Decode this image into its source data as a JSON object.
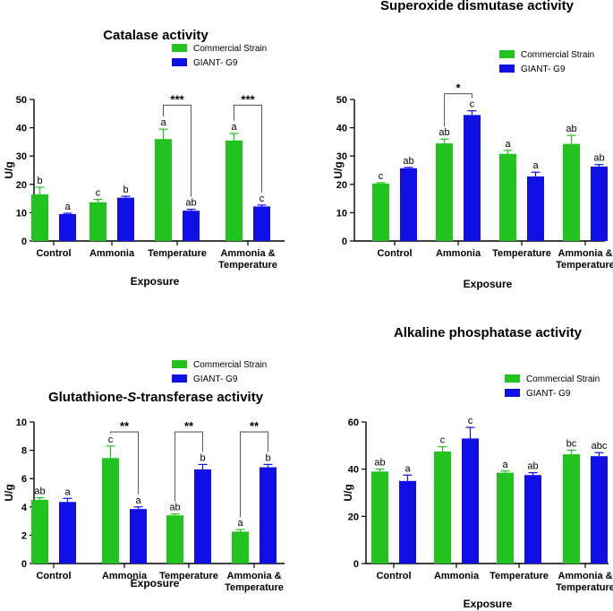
{
  "colors": {
    "commercial": "#22c21f",
    "giant": "#1010e6"
  },
  "chart_data": [
    {
      "type": "bar",
      "title": "Catalase activity",
      "xlabel": "Exposure",
      "ylabel": "U/g",
      "ylim": [
        0,
        50
      ],
      "yticks": [
        "0",
        "10",
        "20",
        "30",
        "40",
        "50"
      ],
      "categories": [
        "Control",
        "Ammonia",
        "Temperature",
        [
          "Ammonia &",
          "Temperature"
        ]
      ],
      "legend": [
        "Commercial Strain",
        "GIANT- G9"
      ],
      "series": [
        {
          "name": "Commercial Strain",
          "values": [
            16.5,
            13.7,
            36.0,
            35.5
          ],
          "errors": [
            2.5,
            1.0,
            3.5,
            2.5
          ],
          "letters": [
            "b",
            "c",
            "a",
            "a"
          ]
        },
        {
          "name": "GIANT- G9",
          "values": [
            9.5,
            15.3,
            10.7,
            12.2
          ],
          "errors": [
            0.3,
            0.5,
            0.5,
            0.5
          ],
          "letters": [
            "a",
            "b",
            "ab",
            "c"
          ]
        }
      ],
      "significance": [
        {
          "group": 2,
          "label": "***",
          "top": 48
        },
        {
          "group": 3,
          "label": "***",
          "top": 48
        }
      ]
    },
    {
      "type": "bar",
      "title": "Superoxide dismutase activity",
      "xlabel": "Exposure",
      "ylabel": "U/g",
      "ylim": [
        0,
        50
      ],
      "yticks": [
        "0",
        "10",
        "20",
        "30",
        "40",
        "50"
      ],
      "categories": [
        "Control",
        "Ammonia",
        "Temperature",
        [
          "Ammonia &",
          "Temperature"
        ]
      ],
      "legend": [
        "Commercial Strain",
        "GIANT- G9"
      ],
      "series": [
        {
          "name": "Commercial Strain",
          "values": [
            20.3,
            34.5,
            30.8,
            34.3
          ],
          "errors": [
            0.3,
            1.5,
            1.2,
            3.0
          ],
          "letters": [
            "c",
            "ab",
            "a",
            "ab"
          ]
        },
        {
          "name": "GIANT- G9",
          "values": [
            25.7,
            44.5,
            22.8,
            26.3
          ],
          "errors": [
            0.3,
            1.5,
            1.5,
            0.7
          ],
          "letters": [
            "ab",
            "c",
            "a",
            "ab"
          ]
        }
      ],
      "significance": [
        {
          "group": 1,
          "label": "*",
          "top": 52
        }
      ]
    },
    {
      "type": "bar",
      "title": "Glutathione-S-transferase activity",
      "xlabel": "Exposure",
      "ylabel": "U/g",
      "ylim": [
        0,
        10
      ],
      "yticks": [
        "0",
        "2",
        "4",
        "6",
        "8",
        "10"
      ],
      "categories": [
        "Control",
        "Ammonia",
        "Temperature",
        [
          "Ammonia &",
          "Temperature"
        ]
      ],
      "legend": [
        "Commercial Strain",
        "GIANT- G9"
      ],
      "series": [
        {
          "name": "Commercial Strain",
          "values": [
            4.5,
            7.45,
            3.4,
            2.25
          ],
          "errors": [
            0.15,
            0.85,
            0.1,
            0.15
          ],
          "letters": [
            "ab",
            "c",
            "ab",
            "a"
          ]
        },
        {
          "name": "GIANT- G9",
          "values": [
            4.35,
            3.85,
            6.65,
            6.8
          ],
          "errors": [
            0.25,
            0.15,
            0.35,
            0.2
          ],
          "letters": [
            "a",
            "a",
            "b",
            "b"
          ]
        }
      ],
      "significance": [
        {
          "group": 1,
          "label": "**",
          "top": 9.3
        },
        {
          "group": 2,
          "label": "**",
          "top": 9.3
        },
        {
          "group": 3,
          "label": "**",
          "top": 9.3
        }
      ]
    },
    {
      "type": "bar",
      "title": "Alkaline phosphatase activity",
      "xlabel": "Exposure",
      "ylabel": "U/g",
      "ylim": [
        0,
        60
      ],
      "yticks": [
        "0",
        "20",
        "40",
        "60"
      ],
      "categories": [
        "Control",
        "Ammonia",
        "Temperature",
        [
          "Ammonia &",
          "Temperature"
        ]
      ],
      "legend": [
        "Commercial Strain",
        "GIANT- G9"
      ],
      "series": [
        {
          "name": "Commercial Strain",
          "values": [
            39.0,
            47.5,
            38.5,
            46.3
          ],
          "errors": [
            1.0,
            2.0,
            0.7,
            1.7
          ],
          "letters": [
            "ab",
            "c",
            "a",
            "bc"
          ]
        },
        {
          "name": "GIANT- G9",
          "values": [
            35.0,
            53.0,
            37.5,
            45.5
          ],
          "errors": [
            2.5,
            4.7,
            1.0,
            1.5
          ],
          "letters": [
            "a",
            "c",
            "ab",
            "abc"
          ]
        }
      ],
      "significance": []
    }
  ]
}
